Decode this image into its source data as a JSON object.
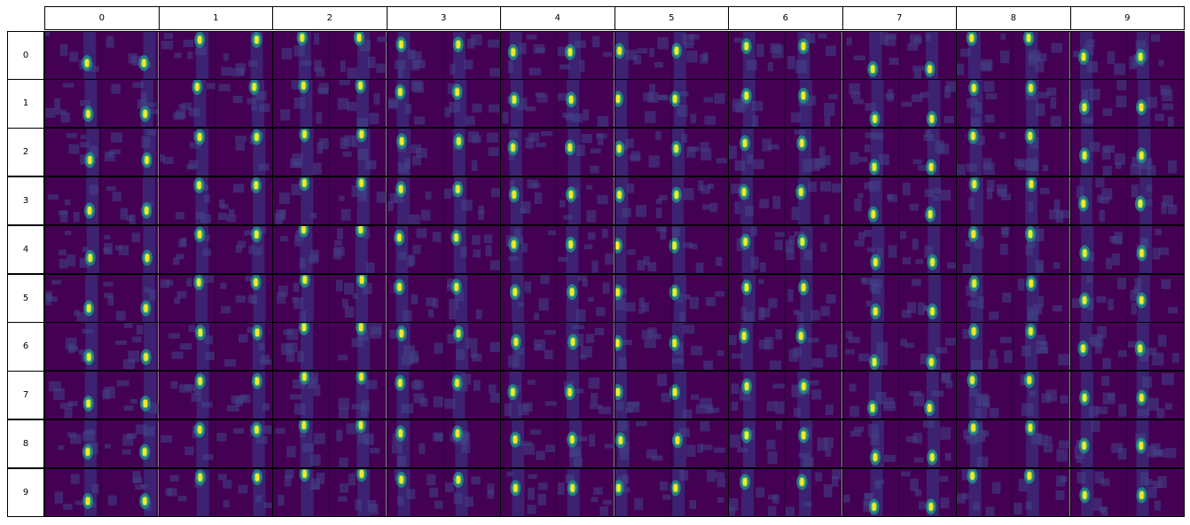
{
  "chart_data": [
    {
      "type": "heatmap",
      "title": "",
      "col_labels": [
        "0",
        "1",
        "2",
        "3",
        "4",
        "5",
        "6",
        "7",
        "8",
        "9"
      ],
      "row_labels": [
        "0",
        "1",
        "2",
        "3",
        "4",
        "5",
        "6",
        "7",
        "8",
        "9"
      ],
      "panels_per_cell": 2,
      "colormap": "viridis"
    }
  ],
  "colors": {
    "background": "#ffffff",
    "border": "#000000",
    "viridis_low": "#440154",
    "viridis_mid": "#21918c",
    "viridis_high": "#fde725"
  }
}
